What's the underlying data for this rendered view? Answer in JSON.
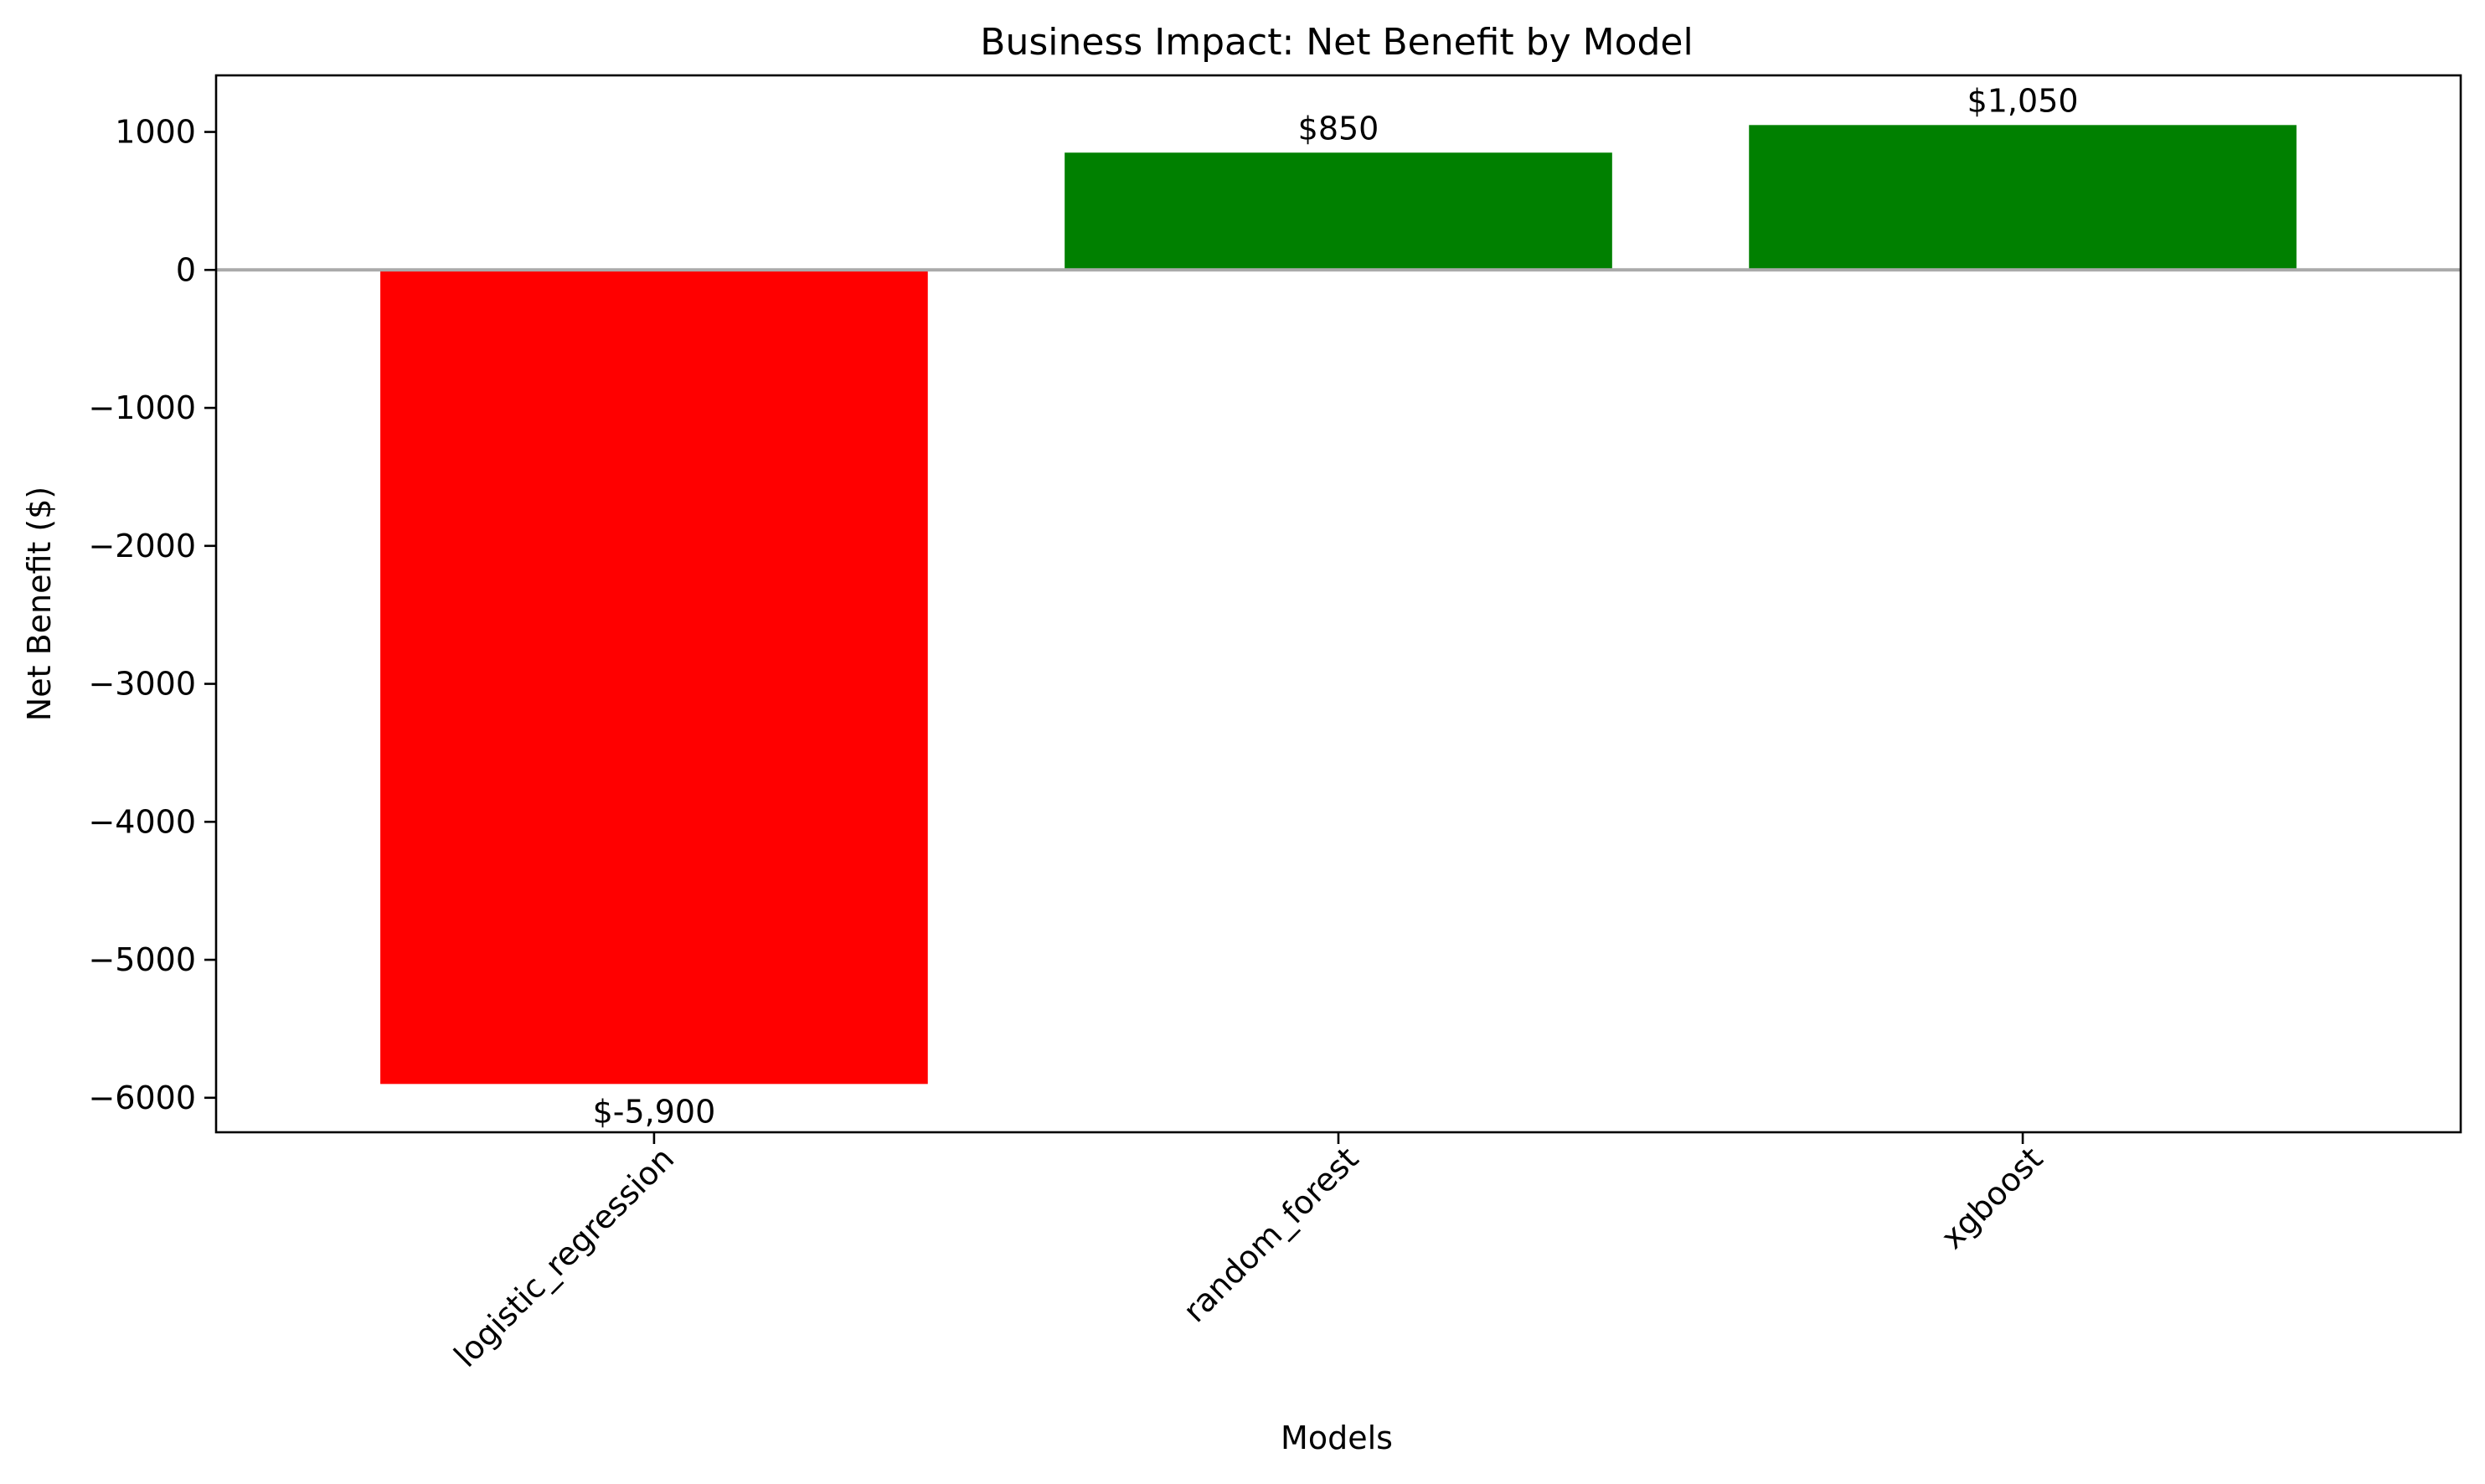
{
  "chart_data": {
    "type": "bar",
    "title": "Business Impact: Net Benefit by Model",
    "xlabel": "Models",
    "ylabel": "Net Benefit ($)",
    "categories": [
      "logistic_regression",
      "random_forest",
      "xgboost"
    ],
    "values": [
      -5900,
      850,
      1050
    ],
    "value_labels": [
      "$-5,900",
      "$850",
      "$1,050"
    ],
    "bar_colors": [
      "#ff0000",
      "#008000",
      "#008000"
    ],
    "ylim": [
      -6250,
      1410
    ],
    "yticks": [
      1000,
      0,
      -1000,
      -2000,
      -3000,
      -4000,
      -5000,
      -6000
    ],
    "ytick_labels": [
      "1000",
      "0",
      "−1000",
      "−2000",
      "−3000",
      "−4000",
      "−5000",
      "−6000"
    ],
    "zero_line_color": "#aaaaaa",
    "grid": false,
    "legend": "none"
  }
}
